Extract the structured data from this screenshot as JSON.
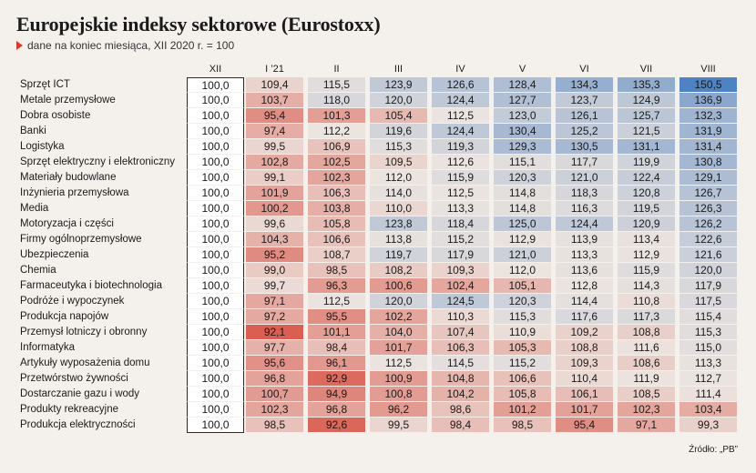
{
  "title": "Europejskie indeksy sektorowe (Eurostoxx)",
  "subtitle": "dane na koniec miesiąca, XII 2020 r. = 100",
  "source": "Źródło: „PB”",
  "chart_data": {
    "type": "table",
    "columns": [
      "XII",
      "I ’21",
      "II",
      "III",
      "IV",
      "V",
      "VI",
      "VII",
      "VIII"
    ],
    "rows": [
      {
        "label": "Sprzęt ICT",
        "values": [
          "100,0",
          "109,4",
          "115,5",
          "123,9",
          "126,6",
          "128,4",
          "134,3",
          "135,3",
          "150,5"
        ]
      },
      {
        "label": "Metale przemysłowe",
        "values": [
          "100,0",
          "103,7",
          "118,0",
          "120,0",
          "124,4",
          "127,7",
          "123,7",
          "124,9",
          "136,9"
        ]
      },
      {
        "label": "Dobra osobiste",
        "values": [
          "100,0",
          "95,4",
          "101,3",
          "105,4",
          "112,5",
          "123,0",
          "126,1",
          "125,7",
          "132,3"
        ]
      },
      {
        "label": "Banki",
        "values": [
          "100,0",
          "97,4",
          "112,2",
          "119,6",
          "124,4",
          "130,4",
          "125,2",
          "121,5",
          "131,9"
        ]
      },
      {
        "label": "Logistyka",
        "values": [
          "100,0",
          "99,5",
          "106,9",
          "115,3",
          "119,3",
          "129,3",
          "130,5",
          "131,1",
          "131,4"
        ]
      },
      {
        "label": "Sprzęt elektryczny i elektroniczny",
        "values": [
          "100,0",
          "102,8",
          "102,5",
          "109,5",
          "112,6",
          "115,1",
          "117,7",
          "119,9",
          "130,8"
        ]
      },
      {
        "label": "Materiały budowlane",
        "values": [
          "100,0",
          "99,1",
          "102,3",
          "112,0",
          "115,9",
          "120,3",
          "121,0",
          "122,4",
          "129,1"
        ]
      },
      {
        "label": "Inżynieria przemysłowa",
        "values": [
          "100,0",
          "101,9",
          "106,3",
          "114,0",
          "112,5",
          "114,8",
          "118,3",
          "120,8",
          "126,7"
        ]
      },
      {
        "label": "Media",
        "values": [
          "100,0",
          "100,2",
          "103,8",
          "110,0",
          "113,3",
          "114,8",
          "116,3",
          "119,5",
          "126,3"
        ]
      },
      {
        "label": "Motoryzacja i części",
        "values": [
          "100,0",
          "99,6",
          "105,8",
          "123,8",
          "118,4",
          "125,0",
          "124,4",
          "120,9",
          "126,2"
        ]
      },
      {
        "label": "Firmy ogólnoprzemysłowe",
        "values": [
          "100,0",
          "104,3",
          "106,6",
          "113,8",
          "115,2",
          "112,9",
          "113,9",
          "113,4",
          "122,6"
        ]
      },
      {
        "label": "Ubezpieczenia",
        "values": [
          "100,0",
          "95,2",
          "108,7",
          "119,7",
          "117,9",
          "121,0",
          "113,3",
          "112,9",
          "121,6"
        ]
      },
      {
        "label": "Chemia",
        "values": [
          "100,0",
          "99,0",
          "98,5",
          "108,2",
          "109,3",
          "112,0",
          "113,6",
          "115,9",
          "120,0"
        ]
      },
      {
        "label": "Farmaceutyka i biotechnologia",
        "values": [
          "100,0",
          "99,7",
          "96,3",
          "100,6",
          "102,4",
          "105,1",
          "112,8",
          "114,3",
          "117,9"
        ]
      },
      {
        "label": "Podróże i wypoczynek",
        "values": [
          "100,0",
          "97,1",
          "112,5",
          "120,0",
          "124,5",
          "120,3",
          "114,4",
          "110,8",
          "117,5"
        ]
      },
      {
        "label": "Produkcja napojów",
        "values": [
          "100,0",
          "97,2",
          "95,5",
          "102,2",
          "110,3",
          "115,3",
          "117,6",
          "117,3",
          "115,4"
        ]
      },
      {
        "label": "Przemysł lotniczy i obronny",
        "values": [
          "100,0",
          "92,1",
          "101,1",
          "104,0",
          "107,4",
          "110,9",
          "109,2",
          "108,8",
          "115,3"
        ]
      },
      {
        "label": "Informatyka",
        "values": [
          "100,0",
          "97,7",
          "98,4",
          "101,7",
          "106,3",
          "105,3",
          "108,8",
          "111,6",
          "115,0"
        ]
      },
      {
        "label": "Artykuły wyposażenia domu",
        "values": [
          "100,0",
          "95,6",
          "96,1",
          "112,5",
          "114,5",
          "115,2",
          "109,3",
          "108,6",
          "113,3"
        ]
      },
      {
        "label": "Przetwórstwo żywności",
        "values": [
          "100,0",
          "96,8",
          "92,9",
          "100,9",
          "104,8",
          "106,6",
          "110,4",
          "111,9",
          "112,7"
        ]
      },
      {
        "label": "Dostarczanie gazu i wody",
        "values": [
          "100,0",
          "100,7",
          "94,9",
          "100,8",
          "104,2",
          "105,8",
          "106,1",
          "108,5",
          "111,4"
        ]
      },
      {
        "label": "Produkty rekreacyjne",
        "values": [
          "100,0",
          "102,3",
          "96,8",
          "96,2",
          "98,6",
          "101,2",
          "101,7",
          "102,3",
          "103,4"
        ]
      },
      {
        "label": "Produkcja elektryczności",
        "values": [
          "100,0",
          "98,5",
          "92,6",
          "99,5",
          "98,4",
          "98,5",
          "95,4",
          "97,1",
          "99,3"
        ]
      }
    ],
    "color_scale": {
      "low": "#d9574a",
      "mid": "#ece4df",
      "high": "#4f82c2"
    }
  }
}
